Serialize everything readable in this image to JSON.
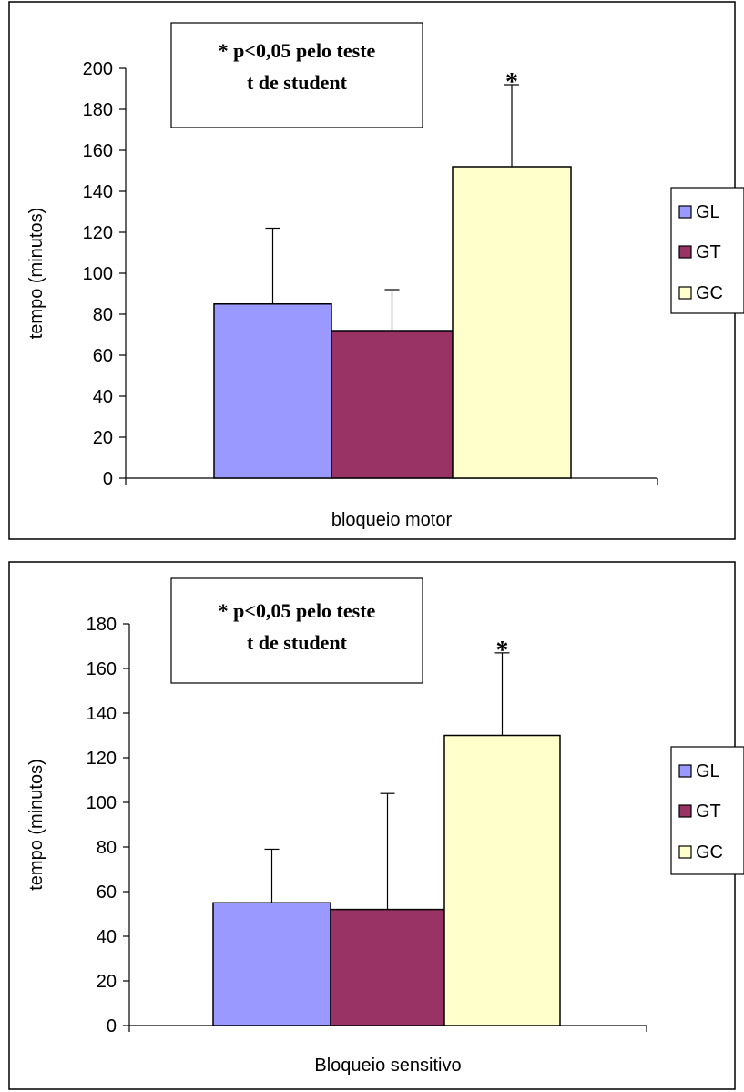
{
  "chart_data": [
    {
      "type": "bar",
      "xlabel": "bloqueio motor",
      "ylabel": "tempo (minutos)",
      "ylim": [
        0,
        200
      ],
      "yticks": [
        0,
        20,
        40,
        60,
        80,
        100,
        120,
        140,
        160,
        180,
        200
      ],
      "series": [
        {
          "name": "GL",
          "value": 85,
          "error": 37,
          "color": "#9999ff"
        },
        {
          "name": "GT",
          "value": 72,
          "error": 20,
          "color": "#993366"
        },
        {
          "name": "GC",
          "value": 152,
          "error": 40,
          "color": "#ffffcc"
        }
      ],
      "significance": {
        "series": "GC",
        "marker": "*"
      },
      "note": {
        "line1": "* p<0,05 pelo teste",
        "line2": "t de student"
      },
      "grid": false,
      "legend_position": "right"
    },
    {
      "type": "bar",
      "xlabel": "Bloqueio sensitivo",
      "ylabel": "tempo (minutos)",
      "ylim": [
        0,
        180
      ],
      "yticks": [
        0,
        20,
        40,
        60,
        80,
        100,
        120,
        140,
        160,
        180
      ],
      "series": [
        {
          "name": "GL",
          "value": 55,
          "error": 24,
          "color": "#9999ff"
        },
        {
          "name": "GT",
          "value": 52,
          "error": 52,
          "color": "#993366"
        },
        {
          "name": "GC",
          "value": 130,
          "error": 37,
          "color": "#ffffcc"
        }
      ],
      "significance": {
        "series": "GC",
        "marker": "*"
      },
      "note": {
        "line1": "* p<0,05 pelo teste",
        "line2": "t de student"
      },
      "grid": false,
      "legend_position": "right"
    }
  ]
}
